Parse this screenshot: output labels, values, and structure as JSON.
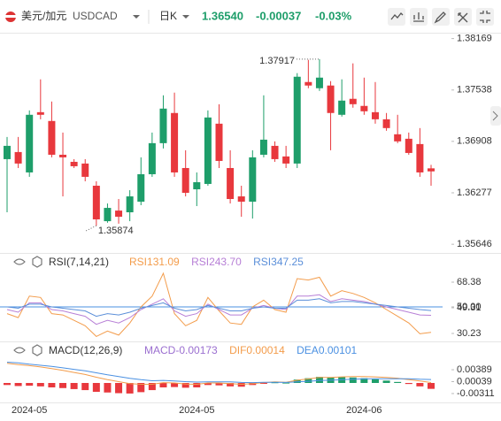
{
  "header": {
    "pair_name": "美元/加元",
    "symbol": "USDCAD",
    "period": "日K",
    "last": "1.36540",
    "change": "-0.00037",
    "change_pct": "-0.03%"
  },
  "chart_data": [
    {
      "type": "candlestick",
      "up_color": "#1e9e6a",
      "down_color": "#e8383d",
      "categories": [
        null,
        null,
        "2024-05",
        null,
        null,
        null,
        null,
        null,
        null,
        null,
        null,
        null,
        null,
        null,
        null,
        null,
        null,
        "2024-05",
        null,
        null,
        null,
        null,
        null,
        null,
        null,
        null,
        null,
        null,
        null,
        null,
        null,
        null,
        "2024-06",
        null,
        null,
        null,
        null,
        null,
        null
      ],
      "open": [
        1.3669,
        1.36777,
        1.36527,
        1.37266,
        1.37158,
        1.36744,
        1.36657,
        1.36636,
        1.36364,
        1.35929,
        1.36059,
        1.36038,
        1.36168,
        1.36505,
        1.36886,
        1.37256,
        1.36581,
        1.3632,
        1.36386,
        1.37125,
        1.36581,
        1.36233,
        1.36168,
        1.36744,
        1.36853,
        1.36723,
        1.36636,
        1.37636,
        1.3756,
        1.37593,
        1.37234,
        1.3743,
        1.37343,
        1.37266,
        1.37179,
        1.36995,
        1.3694,
        1.36875,
        1.36577
      ],
      "high": [
        1.36962,
        1.36962,
        1.37288,
        1.37669,
        1.37397,
        1.37016,
        1.3669,
        1.3669,
        1.36418,
        1.36146,
        1.36201,
        1.36309,
        1.36712,
        1.37016,
        1.37473,
        1.37506,
        1.36799,
        1.36527,
        1.37288,
        1.37364,
        1.36799,
        1.36364,
        1.36799,
        1.37473,
        1.36908,
        1.36853,
        1.37745,
        1.37908,
        1.37917,
        1.37647,
        1.37669,
        1.37865,
        1.3769,
        1.37636,
        1.37256,
        1.37234,
        1.37016,
        1.37071,
        1.3662
      ],
      "low": [
        1.36038,
        1.36581,
        1.36473,
        1.37179,
        1.36712,
        1.36233,
        1.36581,
        1.36418,
        1.35874,
        1.3591,
        1.35898,
        1.35929,
        1.36125,
        1.36473,
        1.36821,
        1.36473,
        1.36233,
        1.36114,
        1.36364,
        1.36581,
        1.36146,
        1.35983,
        1.35961,
        1.36712,
        1.36657,
        1.36581,
        1.36581,
        1.3756,
        1.37527,
        1.36799,
        1.37212,
        1.37321,
        1.37234,
        1.37125,
        1.37038,
        1.36886,
        1.36744,
        1.36473,
        1.36364
      ],
      "close": [
        1.36853,
        1.36636,
        1.37234,
        1.37234,
        1.36744,
        1.36712,
        1.36603,
        1.36473,
        1.35951,
        1.36092,
        1.35983,
        1.36233,
        1.36505,
        1.36886,
        1.3731,
        1.36527,
        1.36277,
        1.36407,
        1.37201,
        1.36668,
        1.36201,
        1.36168,
        1.36712,
        1.36929,
        1.3669,
        1.36636,
        1.37701,
        1.37593,
        1.3769,
        1.37256,
        1.37408,
        1.37364,
        1.37277,
        1.37179,
        1.37071,
        1.36908,
        1.36766,
        1.36527,
        1.3654
      ],
      "ylim": [
        1.3555,
        1.3823
      ],
      "yticks": [
        1.38169,
        1.37538,
        1.36908,
        1.36277,
        1.35646
      ]
    },
    {
      "type": "line",
      "title": "RSI(7,14,21)",
      "ylim": [
        26.3,
        77.6
      ],
      "yticks": [
        68.38,
        {
          "value": 50,
          "label": "50.00"
        },
        49.31,
        30.23
      ],
      "hline": {
        "value": 50,
        "color": "#4a90e2"
      },
      "series": [
        {
          "name": "RSI1",
          "color": "#f39c4b",
          "values": [
            45,
            42,
            58,
            57,
            45,
            44,
            40,
            36,
            28,
            32,
            29,
            38,
            50,
            58,
            75,
            45,
            36,
            40,
            57,
            47,
            38,
            37,
            50,
            55,
            48,
            46,
            71,
            70,
            72,
            58,
            62,
            60,
            57,
            53,
            48,
            43,
            38,
            30,
            31.09
          ]
        },
        {
          "name": "RSI2",
          "color": "#b77fd6",
          "values": [
            48,
            46,
            53,
            53,
            48,
            47,
            45,
            43,
            37,
            40,
            38,
            42,
            48,
            52,
            56,
            47,
            43,
            45,
            52,
            48,
            44,
            44,
            49,
            51,
            49,
            48,
            58,
            58,
            59,
            54,
            56,
            55,
            54,
            52,
            50,
            48,
            46,
            44,
            43.7
          ],
          "value_labels": [
            null,
            null,
            null,
            null,
            null,
            null,
            null,
            null,
            null,
            null,
            null,
            null,
            null,
            null,
            null,
            null,
            null,
            null,
            null,
            null,
            null,
            null,
            null,
            null,
            null,
            null,
            null,
            null,
            null,
            null,
            null,
            null,
            null,
            null,
            null,
            null,
            null,
            null,
            "43.70"
          ]
        },
        {
          "name": "RSI3",
          "color": "#5b8fd9",
          "values": [
            50,
            49,
            52,
            52,
            50,
            49,
            48,
            47,
            43,
            45,
            44,
            46,
            49,
            51,
            53,
            49,
            47,
            48,
            51,
            49,
            47,
            47,
            49,
            50,
            49,
            49,
            55,
            55,
            56,
            53,
            54,
            54,
            53,
            52,
            51,
            50,
            49,
            48,
            47.25
          ]
        }
      ]
    },
    {
      "type": "macd",
      "title": "MACD(12,26,9)",
      "ylim": [
        -0.0052,
        0.0078
      ],
      "yticks": [
        0.00389,
        0.00039,
        -0.00311
      ],
      "up_color": "#1e9e6a",
      "down_color": "#e8383d",
      "histogram": {
        "name": "MACD",
        "color": "#9b6fd0",
        "values": [
          -0.0006,
          -0.0009,
          -0.0008,
          -0.001,
          -0.0013,
          -0.0015,
          -0.0018,
          -0.0021,
          -0.0026,
          -0.0028,
          -0.003,
          -0.0031,
          -0.0027,
          -0.0021,
          -0.0013,
          -0.0012,
          -0.0014,
          -0.0013,
          -0.0006,
          -0.0007,
          -0.001,
          -0.0011,
          -0.0006,
          -0.0002,
          0.0002,
          0.0001,
          0.001,
          0.0014,
          0.0018,
          0.0016,
          0.0017,
          0.0016,
          0.0014,
          0.0011,
          0.0007,
          0.0003,
          -0.0003,
          -0.001,
          -0.00173
        ]
      },
      "series": [
        {
          "name": "DIF",
          "color": "#f39c4b",
          "values": [
            0.0058,
            0.0054,
            0.0051,
            0.0047,
            0.0042,
            0.0037,
            0.0031,
            0.0025,
            0.0017,
            0.001,
            0.0004,
            -0.0002,
            -0.0004,
            -0.0004,
            0.0001,
            0,
            -0.0003,
            -0.0004,
            0,
            0,
            -0.0002,
            -0.0004,
            -0.0002,
            0.0001,
            0.0003,
            0.0002,
            0.0008,
            0.0012,
            0.0016,
            0.0016,
            0.0018,
            0.0019,
            0.0019,
            0.0018,
            0.0016,
            0.0014,
            0.001,
            0.0006,
            0.00014
          ]
        },
        {
          "name": "DEA",
          "color": "#4a90e2",
          "values": [
            0.0061,
            0.0059,
            0.0055,
            0.0052,
            0.00485,
            0.00445,
            0.004,
            0.00355,
            0.003,
            0.0024,
            0.0019,
            0.00135,
            0.00095,
            0.00065,
            0.00075,
            0.0006,
            0.0004,
            0.00025,
            0.0003,
            0.00035,
            0.0003,
            0.00015,
            0.0001,
            0.0002,
            0.0002,
            0.00015,
            0.0003,
            0.0005,
            0.0007,
            0.0008,
            0.00095,
            0.0011,
            0.0012,
            0.00125,
            0.00125,
            0.00125,
            0.00125,
            0.0011,
            0.00101
          ]
        }
      ]
    }
  ]
}
